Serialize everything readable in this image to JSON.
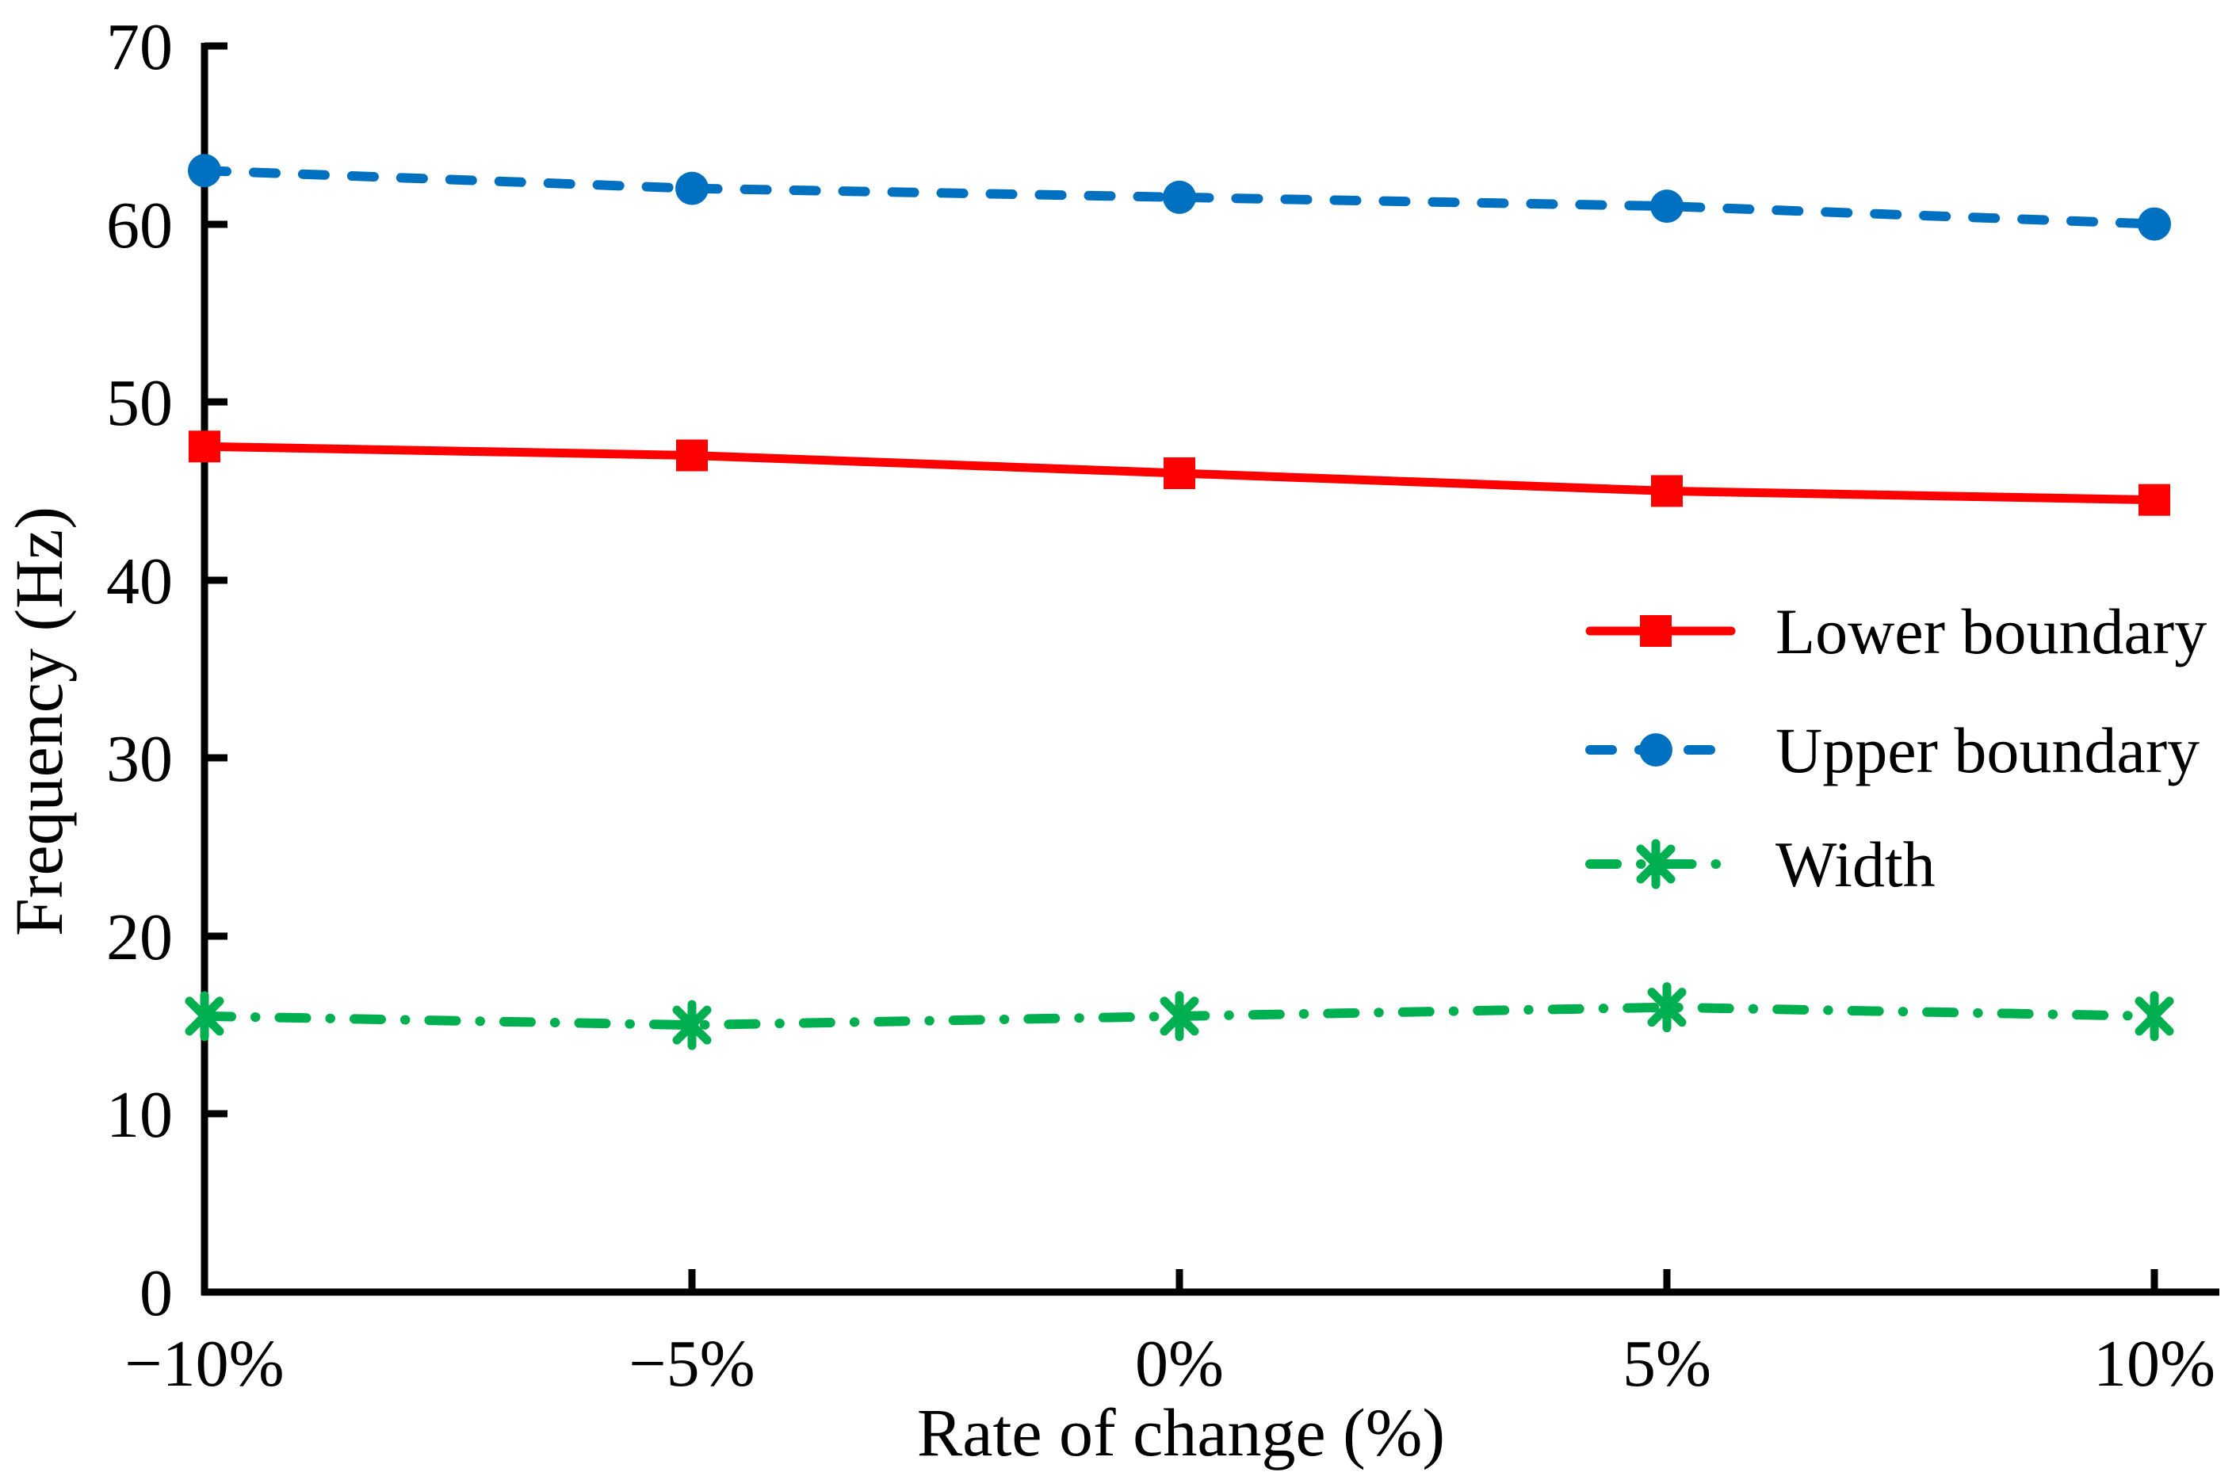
{
  "chart_data": {
    "type": "line",
    "title": "",
    "xlabel": "Rate of change (%)",
    "ylabel": "Frequency (Hz)",
    "x": [
      -10,
      -5,
      0,
      5,
      10
    ],
    "x_tick_labels": [
      "−10%",
      "−5%",
      "0%",
      "5%",
      "10%"
    ],
    "y_tick_labels": [
      "0",
      "10",
      "20",
      "30",
      "40",
      "50",
      "60",
      "70"
    ],
    "ylim": [
      0,
      70
    ],
    "xlim_percent": [
      -10,
      10
    ],
    "grid": false,
    "legend_position": "center-right",
    "series": [
      {
        "name": "Lower boundary",
        "color": "#FF0000",
        "line_style": "solid",
        "marker": "square",
        "values": [
          47.5,
          47,
          46,
          45,
          44.5
        ]
      },
      {
        "name": "Upper boundary",
        "color": "#0070C0",
        "line_style": "dashed",
        "marker": "circle",
        "values": [
          63,
          62,
          61.5,
          61,
          60
        ]
      },
      {
        "name": "Width",
        "color": "#00B050",
        "line_style": "dash-dot",
        "marker": "asterisk",
        "values": [
          15.5,
          15,
          15.5,
          16,
          15.5
        ]
      }
    ]
  }
}
